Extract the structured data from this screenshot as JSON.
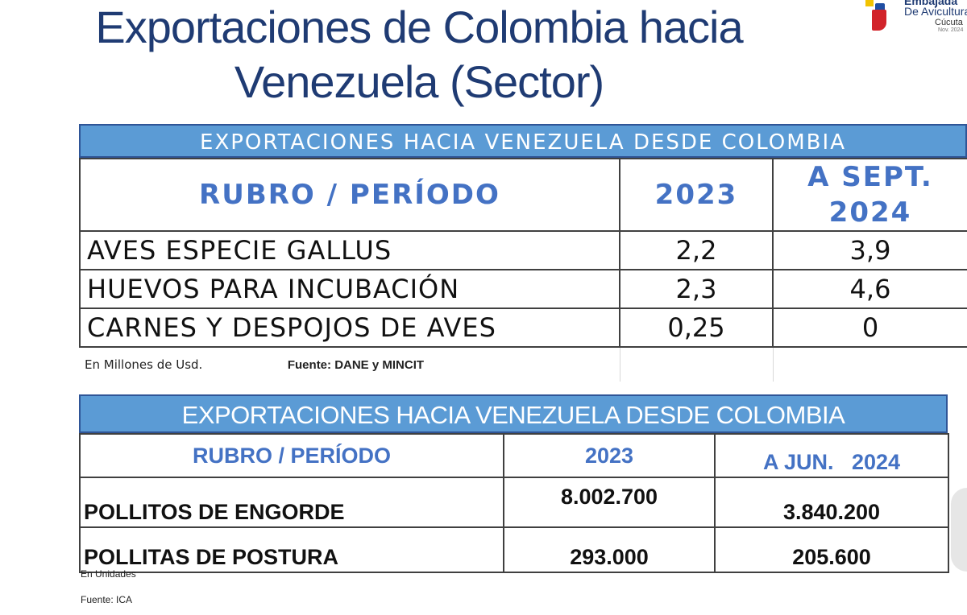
{
  "title": "Exportaciones de Colombia hacia Venezuela (Sector)",
  "logo": {
    "line1": "Embajada",
    "line2": "De Avicultura",
    "line3": "Cúcuta",
    "line4": "Nov. 2024",
    "colors": [
      "#f2c300",
      "#1f4ea3",
      "#d2232a"
    ]
  },
  "table1": {
    "band": "EXPORTACIONES HACIA VENEZUELA DESDE COLOMBIA",
    "headers": [
      "RUBRO / PERÍODO",
      "2023",
      "A SEPT. 2024"
    ],
    "rows": [
      {
        "label": "AVES ESPECIE GALLUS",
        "y2023": "2,2",
        "y2024": "3,9"
      },
      {
        "label": "HUEVOS PARA INCUBACIÓN",
        "y2023": "2,3",
        "y2024": "4,6"
      },
      {
        "label": "CARNES Y DESPOJOS DE AVES",
        "y2023": "0,25",
        "y2024": "0"
      }
    ],
    "unit_note": "En Millones de Usd.",
    "source_note": "Fuente: DANE y MINCIT"
  },
  "table2": {
    "band": "EXPORTACIONES HACIA VENEZUELA DESDE COLOMBIA",
    "headers": [
      "RUBRO / PERÍODO",
      "2023",
      "A JUN.   2024"
    ],
    "rows": [
      {
        "label": "POLLITOS DE ENGORDE",
        "y2023": "8.002.700",
        "y2024": "3.840.200"
      },
      {
        "label": "POLLITAS DE POSTURA",
        "y2023": "293.000",
        "y2024": "205.600"
      }
    ],
    "unit_note": "En Unidades",
    "source_note": "Fuente:  ICA"
  },
  "colors": {
    "title": "#1f3b73",
    "band": "#5b9bd5",
    "header_text": "#4472c4"
  }
}
